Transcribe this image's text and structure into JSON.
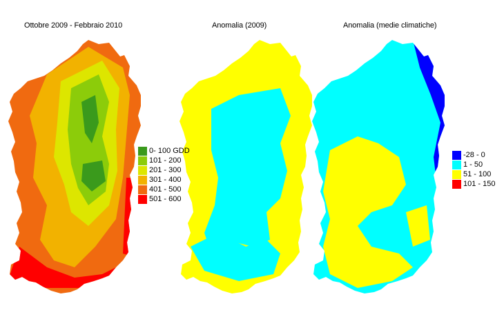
{
  "panels": [
    {
      "title": "Ottobre 2009 - Febbraio 2010"
    },
    {
      "title": "Anomalia (2009)"
    },
    {
      "title": "Anomalia (medie climatiche)"
    }
  ],
  "legends": {
    "gdd": [
      {
        "label": "0- 100 GDD",
        "color": "#3a9a1c"
      },
      {
        "label": "101 - 200",
        "color": "#8ccc0a"
      },
      {
        "label": "201 - 300",
        "color": "#dde600"
      },
      {
        "label": "301 - 400",
        "color": "#f2b200"
      },
      {
        "label": "401 - 500",
        "color": "#f06a10"
      },
      {
        "label": "501 - 600",
        "color": "#ff0000"
      }
    ],
    "anomaly": [
      {
        "label": "-28 - 0",
        "color": "#0000ff"
      },
      {
        "label": "1 - 50",
        "color": "#00ffff"
      },
      {
        "label": "51 - 100",
        "color": "#ffff00"
      },
      {
        "label": "101 - 150",
        "color": "#ff0000"
      }
    ]
  }
}
